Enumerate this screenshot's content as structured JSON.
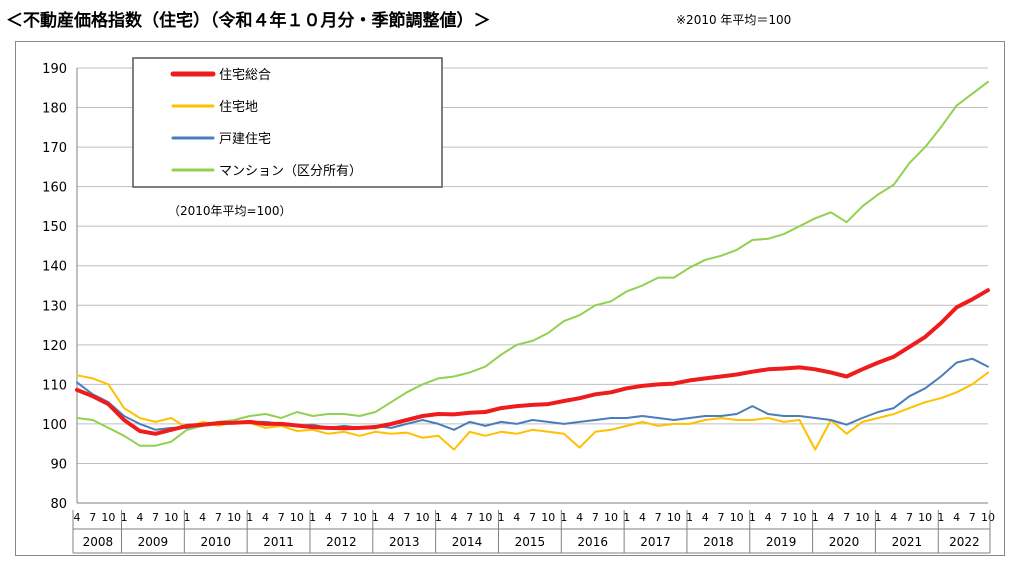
{
  "page": {
    "title": "＜不動産価格指数（住宅）（令和４年１０月分・季節調整値）＞",
    "note": "※2010 年平均＝100"
  },
  "chart_data": {
    "type": "line",
    "title": "",
    "annotation": "（2010年平均=100）",
    "xlabel": "",
    "ylabel": "",
    "ylim": [
      80,
      190
    ],
    "yticks": [
      80,
      90,
      100,
      110,
      120,
      130,
      140,
      150,
      160,
      170,
      180,
      190
    ],
    "grid": true,
    "legend_position": "top-left",
    "month_ticks": [
      "4",
      "7",
      "10",
      "1"
    ],
    "years": [
      "2008",
      "2009",
      "2010",
      "2011",
      "2012",
      "2013",
      "2014",
      "2015",
      "2016",
      "2017",
      "2018",
      "2019",
      "2020",
      "2021",
      "2022"
    ],
    "x_range": [
      "2008-04",
      "2022-10"
    ],
    "series": [
      {
        "name": "住宅総合",
        "color": "#ee1c1c",
        "width": 4,
        "points": [
          [
            "2008-04",
            108.6
          ],
          [
            "2008-07",
            107.0
          ],
          [
            "2008-10",
            105.0
          ],
          [
            "2009-01",
            101.0
          ],
          [
            "2009-04",
            98.2
          ],
          [
            "2009-07",
            97.5
          ],
          [
            "2009-10",
            98.5
          ],
          [
            "2010-01",
            99.5
          ],
          [
            "2010-04",
            99.8
          ],
          [
            "2010-07",
            100.2
          ],
          [
            "2010-10",
            100.3
          ],
          [
            "2011-01",
            100.5
          ],
          [
            "2011-04",
            100.0
          ],
          [
            "2011-07",
            100.0
          ],
          [
            "2011-10",
            99.6
          ],
          [
            "2012-01",
            99.2
          ],
          [
            "2012-04",
            99.0
          ],
          [
            "2012-07",
            98.9
          ],
          [
            "2012-10",
            99.0
          ],
          [
            "2013-01",
            99.2
          ],
          [
            "2013-04",
            100.0
          ],
          [
            "2013-07",
            101.0
          ],
          [
            "2013-10",
            102.0
          ],
          [
            "2014-01",
            102.5
          ],
          [
            "2014-04",
            102.4
          ],
          [
            "2014-07",
            102.8
          ],
          [
            "2014-10",
            103.0
          ],
          [
            "2015-01",
            104.0
          ],
          [
            "2015-04",
            104.5
          ],
          [
            "2015-07",
            104.8
          ],
          [
            "2015-10",
            105.0
          ],
          [
            "2016-01",
            105.8
          ],
          [
            "2016-04",
            106.5
          ],
          [
            "2016-07",
            107.5
          ],
          [
            "2016-10",
            108.0
          ],
          [
            "2017-01",
            109.0
          ],
          [
            "2017-04",
            109.6
          ],
          [
            "2017-07",
            110.0
          ],
          [
            "2017-10",
            110.2
          ],
          [
            "2018-01",
            111.0
          ],
          [
            "2018-04",
            111.5
          ],
          [
            "2018-07",
            112.0
          ],
          [
            "2018-10",
            112.5
          ],
          [
            "2019-01",
            113.2
          ],
          [
            "2019-04",
            113.8
          ],
          [
            "2019-07",
            114.0
          ],
          [
            "2019-10",
            114.3
          ],
          [
            "2020-01",
            113.8
          ],
          [
            "2020-04",
            113.0
          ],
          [
            "2020-07",
            112.0
          ],
          [
            "2020-10",
            113.8
          ],
          [
            "2021-01",
            115.5
          ],
          [
            "2021-04",
            117.0
          ],
          [
            "2021-07",
            119.5
          ],
          [
            "2021-10",
            122.0
          ],
          [
            "2022-01",
            125.5
          ],
          [
            "2022-04",
            129.5
          ],
          [
            "2022-07",
            131.5
          ],
          [
            "2022-10",
            133.8
          ]
        ]
      },
      {
        "name": "住宅地",
        "color": "#ffc000",
        "width": 2,
        "points": [
          [
            "2008-04",
            112.3
          ],
          [
            "2008-07",
            111.5
          ],
          [
            "2008-10",
            110.0
          ],
          [
            "2009-01",
            104.0
          ],
          [
            "2009-04",
            101.5
          ],
          [
            "2009-07",
            100.5
          ],
          [
            "2009-10",
            101.5
          ],
          [
            "2010-01",
            99.0
          ],
          [
            "2010-04",
            100.5
          ],
          [
            "2010-07",
            99.5
          ],
          [
            "2010-10",
            100.5
          ],
          [
            "2011-01",
            100.2
          ],
          [
            "2011-04",
            99.0
          ],
          [
            "2011-07",
            99.5
          ],
          [
            "2011-10",
            98.2
          ],
          [
            "2012-01",
            98.5
          ],
          [
            "2012-04",
            97.5
          ],
          [
            "2012-07",
            98.0
          ],
          [
            "2012-10",
            97.0
          ],
          [
            "2013-01",
            98.0
          ],
          [
            "2013-04",
            97.5
          ],
          [
            "2013-07",
            97.8
          ],
          [
            "2013-10",
            96.5
          ],
          [
            "2014-01",
            97.0
          ],
          [
            "2014-04",
            93.5
          ],
          [
            "2014-07",
            98.0
          ],
          [
            "2014-10",
            97.0
          ],
          [
            "2015-01",
            98.0
          ],
          [
            "2015-04",
            97.5
          ],
          [
            "2015-07",
            98.5
          ],
          [
            "2015-10",
            98.0
          ],
          [
            "2016-01",
            97.5
          ],
          [
            "2016-04",
            94.0
          ],
          [
            "2016-07",
            98.0
          ],
          [
            "2016-10",
            98.5
          ],
          [
            "2017-01",
            99.5
          ],
          [
            "2017-04",
            100.5
          ],
          [
            "2017-07",
            99.5
          ],
          [
            "2017-10",
            100.0
          ],
          [
            "2018-01",
            100.0
          ],
          [
            "2018-04",
            101.0
          ],
          [
            "2018-07",
            101.5
          ],
          [
            "2018-10",
            101.0
          ],
          [
            "2019-01",
            101.0
          ],
          [
            "2019-04",
            101.5
          ],
          [
            "2019-07",
            100.5
          ],
          [
            "2019-10",
            101.0
          ],
          [
            "2020-01",
            93.5
          ],
          [
            "2020-04",
            101.0
          ],
          [
            "2020-07",
            97.5
          ],
          [
            "2020-10",
            100.5
          ],
          [
            "2021-01",
            101.5
          ],
          [
            "2021-04",
            102.5
          ],
          [
            "2021-07",
            104.0
          ],
          [
            "2021-10",
            105.5
          ],
          [
            "2022-01",
            106.5
          ],
          [
            "2022-04",
            108.0
          ],
          [
            "2022-07",
            110.0
          ],
          [
            "2022-10",
            113.0
          ]
        ]
      },
      {
        "name": "戸建住宅",
        "color": "#4a7ebb",
        "width": 2,
        "points": [
          [
            "2008-04",
            110.5
          ],
          [
            "2008-07",
            107.5
          ],
          [
            "2008-10",
            105.5
          ],
          [
            "2009-01",
            102.0
          ],
          [
            "2009-04",
            100.0
          ],
          [
            "2009-07",
            98.5
          ],
          [
            "2009-10",
            99.0
          ],
          [
            "2010-01",
            99.0
          ],
          [
            "2010-04",
            99.8
          ],
          [
            "2010-07",
            100.0
          ],
          [
            "2010-10",
            100.3
          ],
          [
            "2011-01",
            100.5
          ],
          [
            "2011-04",
            100.5
          ],
          [
            "2011-07",
            100.0
          ],
          [
            "2011-10",
            99.5
          ],
          [
            "2012-01",
            99.8
          ],
          [
            "2012-04",
            99.0
          ],
          [
            "2012-07",
            99.5
          ],
          [
            "2012-10",
            99.0
          ],
          [
            "2013-01",
            99.5
          ],
          [
            "2013-04",
            99.0
          ],
          [
            "2013-07",
            100.0
          ],
          [
            "2013-10",
            101.0
          ],
          [
            "2014-01",
            100.0
          ],
          [
            "2014-04",
            98.5
          ],
          [
            "2014-07",
            100.5
          ],
          [
            "2014-10",
            99.5
          ],
          [
            "2015-01",
            100.5
          ],
          [
            "2015-04",
            100.0
          ],
          [
            "2015-07",
            101.0
          ],
          [
            "2015-10",
            100.5
          ],
          [
            "2016-01",
            100.0
          ],
          [
            "2016-04",
            100.5
          ],
          [
            "2016-07",
            101.0
          ],
          [
            "2016-10",
            101.5
          ],
          [
            "2017-01",
            101.5
          ],
          [
            "2017-04",
            102.0
          ],
          [
            "2017-07",
            101.5
          ],
          [
            "2017-10",
            101.0
          ],
          [
            "2018-01",
            101.5
          ],
          [
            "2018-04",
            102.0
          ],
          [
            "2018-07",
            102.0
          ],
          [
            "2018-10",
            102.5
          ],
          [
            "2019-01",
            104.5
          ],
          [
            "2019-04",
            102.5
          ],
          [
            "2019-07",
            102.0
          ],
          [
            "2019-10",
            102.0
          ],
          [
            "2020-01",
            101.5
          ],
          [
            "2020-04",
            101.0
          ],
          [
            "2020-07",
            99.8
          ],
          [
            "2020-10",
            101.5
          ],
          [
            "2021-01",
            103.0
          ],
          [
            "2021-04",
            104.0
          ],
          [
            "2021-07",
            107.0
          ],
          [
            "2021-10",
            109.0
          ],
          [
            "2022-01",
            112.0
          ],
          [
            "2022-04",
            115.5
          ],
          [
            "2022-07",
            116.5
          ],
          [
            "2022-10",
            114.5
          ]
        ]
      },
      {
        "name": "マンション（区分所有）",
        "color": "#92d050",
        "width": 2,
        "points": [
          [
            "2008-04",
            101.5
          ],
          [
            "2008-07",
            101.0
          ],
          [
            "2008-10",
            99.0
          ],
          [
            "2009-01",
            97.0
          ],
          [
            "2009-04",
            94.5
          ],
          [
            "2009-07",
            94.5
          ],
          [
            "2009-10",
            95.5
          ],
          [
            "2010-01",
            98.5
          ],
          [
            "2010-04",
            99.5
          ],
          [
            "2010-07",
            100.5
          ],
          [
            "2010-10",
            101.0
          ],
          [
            "2011-01",
            102.0
          ],
          [
            "2011-04",
            102.5
          ],
          [
            "2011-07",
            101.5
          ],
          [
            "2011-10",
            103.0
          ],
          [
            "2012-01",
            102.0
          ],
          [
            "2012-04",
            102.5
          ],
          [
            "2012-07",
            102.5
          ],
          [
            "2012-10",
            102.0
          ],
          [
            "2013-01",
            103.0
          ],
          [
            "2013-04",
            105.5
          ],
          [
            "2013-07",
            108.0
          ],
          [
            "2013-10",
            110.0
          ],
          [
            "2014-01",
            111.5
          ],
          [
            "2014-04",
            112.0
          ],
          [
            "2014-07",
            113.0
          ],
          [
            "2014-10",
            114.5
          ],
          [
            "2015-01",
            117.5
          ],
          [
            "2015-04",
            120.0
          ],
          [
            "2015-07",
            121.0
          ],
          [
            "2015-10",
            123.0
          ],
          [
            "2016-01",
            126.0
          ],
          [
            "2016-04",
            127.5
          ],
          [
            "2016-07",
            130.0
          ],
          [
            "2016-10",
            131.0
          ],
          [
            "2017-01",
            133.5
          ],
          [
            "2017-04",
            135.0
          ],
          [
            "2017-07",
            137.0
          ],
          [
            "2017-10",
            137.0
          ],
          [
            "2018-01",
            139.5
          ],
          [
            "2018-04",
            141.5
          ],
          [
            "2018-07",
            142.5
          ],
          [
            "2018-10",
            144.0
          ],
          [
            "2019-01",
            146.5
          ],
          [
            "2019-04",
            146.8
          ],
          [
            "2019-07",
            148.0
          ],
          [
            "2019-10",
            150.0
          ],
          [
            "2020-01",
            152.0
          ],
          [
            "2020-04",
            153.5
          ],
          [
            "2020-07",
            151.0
          ],
          [
            "2020-10",
            155.0
          ],
          [
            "2021-01",
            158.0
          ],
          [
            "2021-04",
            160.5
          ],
          [
            "2021-07",
            166.0
          ],
          [
            "2021-10",
            170.0
          ],
          [
            "2022-01",
            175.0
          ],
          [
            "2022-04",
            180.5
          ],
          [
            "2022-07",
            183.5
          ],
          [
            "2022-10",
            186.5
          ]
        ]
      }
    ]
  }
}
